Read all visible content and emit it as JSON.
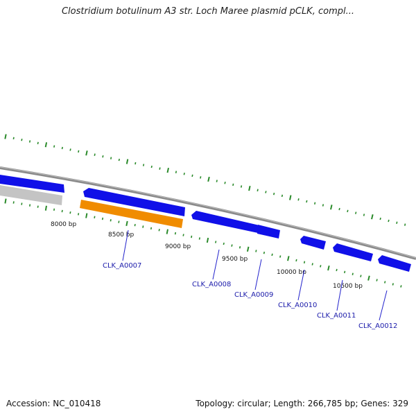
{
  "title": "Clostridium botulinum A3 str. Loch Maree plasmid pCLK, compl...",
  "footer": {
    "accession": "Accession: NC_010418",
    "summary": "Topology: circular; Length: 266,785 bp; Genes: 329"
  },
  "bp_labels": [
    "8000 bp",
    "8500 bp",
    "9000 bp",
    "9500 bp",
    "10000 bp",
    "10500 bp"
  ],
  "genes": [
    "CLK_A0007",
    "CLK_A0008",
    "CLK_A0009",
    "CLK_A0010",
    "CLK_A0011",
    "CLK_A0012"
  ],
  "colors": {
    "forward_gene": "#1010e8",
    "reverse_gene": "#bdbdbd",
    "highlight_gene": "#f08c00",
    "backbone": "#8a8a8a",
    "tick": "#2a8a2a",
    "gene_label": "#1a1aaa"
  }
}
